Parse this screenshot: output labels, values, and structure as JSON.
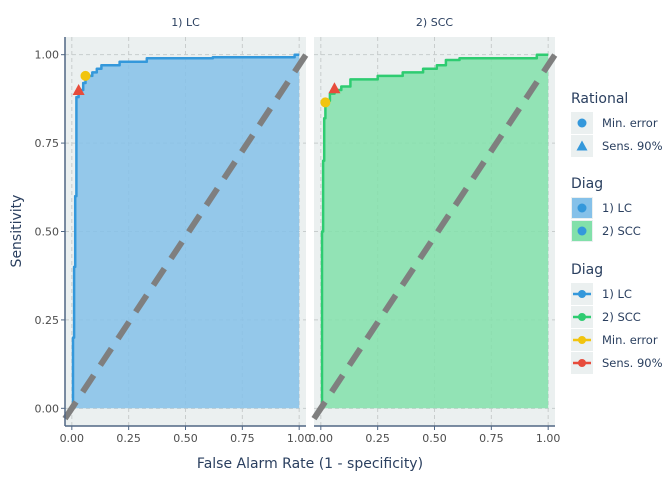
{
  "chart_data": {
    "type": "line",
    "xlabel": "False Alarm Rate (1 - specificity)",
    "ylabel": "Sensitivity",
    "xlim": [
      -0.03,
      1.03
    ],
    "ylim": [
      -0.05,
      1.05
    ],
    "xticks": [
      0.0,
      0.25,
      0.5,
      0.75,
      1.0
    ],
    "yticks": [
      0.0,
      0.25,
      0.5,
      0.75,
      1.0
    ],
    "xtick_labels": [
      "0.00",
      "0.25",
      "0.50",
      "0.75",
      "1.00"
    ],
    "ytick_labels": [
      "0.00",
      "0.25",
      "0.50",
      "0.75",
      "1.00"
    ],
    "grid": true,
    "diagonal_reference": true,
    "facets": [
      {
        "label": "1) LC",
        "line_color": "#3498db",
        "fill_color": "#85c1e9",
        "roc": [
          [
            0,
            0
          ],
          [
            0.005,
            0
          ],
          [
            0.005,
            0.2
          ],
          [
            0.01,
            0.2
          ],
          [
            0.01,
            0.4
          ],
          [
            0.015,
            0.4
          ],
          [
            0.015,
            0.6
          ],
          [
            0.02,
            0.6
          ],
          [
            0.02,
            0.88
          ],
          [
            0.03,
            0.88
          ],
          [
            0.03,
            0.9
          ],
          [
            0.05,
            0.9
          ],
          [
            0.05,
            0.92
          ],
          [
            0.06,
            0.92
          ],
          [
            0.06,
            0.94
          ],
          [
            0.09,
            0.94
          ],
          [
            0.09,
            0.95
          ],
          [
            0.11,
            0.95
          ],
          [
            0.11,
            0.96
          ],
          [
            0.13,
            0.96
          ],
          [
            0.13,
            0.97
          ],
          [
            0.21,
            0.97
          ],
          [
            0.21,
            0.98
          ],
          [
            0.33,
            0.98
          ],
          [
            0.33,
            0.99
          ],
          [
            0.62,
            0.99
          ],
          [
            0.62,
            0.993
          ],
          [
            0.98,
            0.993
          ],
          [
            0.98,
            1.0
          ],
          [
            1.0,
            1.0
          ],
          [
            1.0,
            0
          ]
        ],
        "min_error": [
          0.06,
          0.94
        ],
        "sens_90": [
          0.03,
          0.9
        ]
      },
      {
        "label": "2) SCC",
        "line_color": "#2ecc71",
        "fill_color": "#82e0aa",
        "roc": [
          [
            0,
            0
          ],
          [
            0.005,
            0
          ],
          [
            0.005,
            0.5
          ],
          [
            0.01,
            0.5
          ],
          [
            0.01,
            0.7
          ],
          [
            0.015,
            0.7
          ],
          [
            0.015,
            0.82
          ],
          [
            0.02,
            0.82
          ],
          [
            0.02,
            0.86
          ],
          [
            0.03,
            0.86
          ],
          [
            0.03,
            0.87
          ],
          [
            0.04,
            0.87
          ],
          [
            0.04,
            0.89
          ],
          [
            0.06,
            0.89
          ],
          [
            0.06,
            0.9
          ],
          [
            0.09,
            0.9
          ],
          [
            0.09,
            0.91
          ],
          [
            0.13,
            0.91
          ],
          [
            0.13,
            0.93
          ],
          [
            0.25,
            0.93
          ],
          [
            0.25,
            0.94
          ],
          [
            0.36,
            0.94
          ],
          [
            0.36,
            0.95
          ],
          [
            0.45,
            0.95
          ],
          [
            0.45,
            0.96
          ],
          [
            0.51,
            0.96
          ],
          [
            0.51,
            0.97
          ],
          [
            0.55,
            0.97
          ],
          [
            0.55,
            0.985
          ],
          [
            0.61,
            0.985
          ],
          [
            0.61,
            0.99
          ],
          [
            0.95,
            0.99
          ],
          [
            0.95,
            1.0
          ],
          [
            1.0,
            1.0
          ],
          [
            1.0,
            0
          ]
        ],
        "min_error": [
          0.02,
          0.865
        ],
        "sens_90": [
          0.06,
          0.905
        ]
      }
    ],
    "legend": {
      "placement": "right",
      "groups": [
        {
          "title": "Rational",
          "items": [
            {
              "label": "Min. error",
              "shape": "circle",
              "color": "#3498db"
            },
            {
              "label": "Sens. 90%",
              "shape": "triangle",
              "color": "#3498db"
            }
          ]
        },
        {
          "title": "Diag",
          "items": [
            {
              "label": "1) LC",
              "shape": "fill",
              "color": "#85c1e9",
              "point_color": "#3498db"
            },
            {
              "label": "2) SCC",
              "shape": "fill",
              "color": "#82e0aa",
              "point_color": "#3498db"
            }
          ]
        },
        {
          "title": "Diag",
          "items": [
            {
              "label": "1) LC",
              "shape": "line",
              "color": "#3498db"
            },
            {
              "label": "2) SCC",
              "shape": "line",
              "color": "#2ecc71"
            },
            {
              "label": "Min. error",
              "shape": "line",
              "color": "#f1c40f"
            },
            {
              "label": "Sens. 90%",
              "shape": "line",
              "color": "#e74c3c"
            }
          ]
        }
      ]
    },
    "colors": {
      "panel_bg": "#ebf0f0",
      "grid": "#c8cdcd",
      "diagonal": "#7f7f7f",
      "axis": "#506784",
      "min_error_marker": "#f1c40f",
      "sens90_marker": "#e74c3c"
    }
  }
}
